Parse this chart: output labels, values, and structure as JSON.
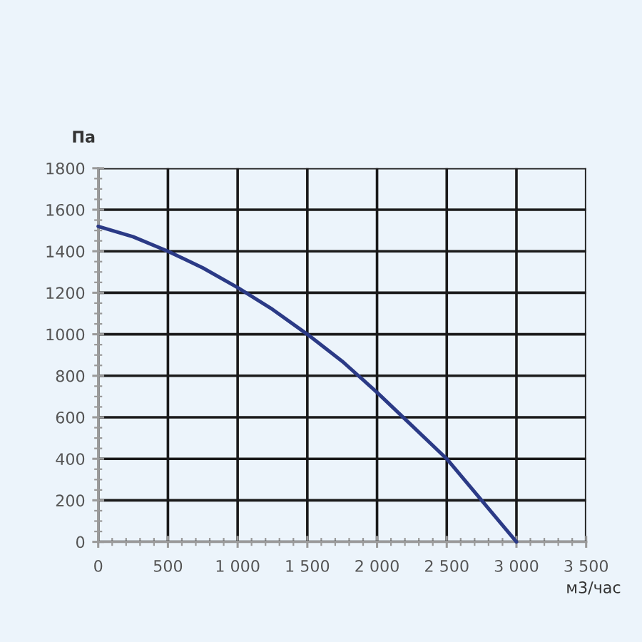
{
  "chart_data": {
    "type": "line",
    "xlabel": "м3/час",
    "ylabel": "Па",
    "x": [
      0,
      250,
      500,
      750,
      1000,
      1250,
      1500,
      1750,
      2000,
      2250,
      2500,
      2750,
      3000
    ],
    "series": [
      {
        "color": "#2b3a86",
        "values": [
          1520,
          1470,
          1400,
          1320,
          1225,
          1120,
          1000,
          870,
          720,
          560,
          400,
          200,
          0
        ]
      }
    ],
    "xlim": [
      0,
      3500
    ],
    "ylim": [
      0,
      1800
    ],
    "xticks": [
      0,
      {
        "value": 100,
        "label": null
      },
      {
        "value": 200,
        "label": null
      },
      {
        "value": 300,
        "label": null
      },
      {
        "value": 400,
        "label": null
      },
      500,
      {
        "value": 600,
        "label": null
      },
      {
        "value": 700,
        "label": null
      },
      {
        "value": 800,
        "label": null
      },
      {
        "value": 900,
        "label": null
      },
      {
        "value": 1000,
        "label": "1 000"
      },
      {
        "value": 1100,
        "label": null
      },
      {
        "value": 1200,
        "label": null
      },
      {
        "value": 1300,
        "label": null
      },
      {
        "value": 1400,
        "label": null
      },
      {
        "value": 1500,
        "label": "1 500"
      },
      {
        "value": 1600,
        "label": null
      },
      {
        "value": 1700,
        "label": null
      },
      {
        "value": 1800,
        "label": null
      },
      {
        "value": 1900,
        "label": null
      },
      {
        "value": 2000,
        "label": "2 000"
      },
      {
        "value": 2100,
        "label": null
      },
      {
        "value": 2200,
        "label": null
      },
      {
        "value": 2300,
        "label": null
      },
      {
        "value": 2400,
        "label": null
      },
      {
        "value": 2500,
        "label": "2 500"
      },
      {
        "value": 2600,
        "label": null
      },
      {
        "value": 2700,
        "label": null
      },
      {
        "value": 2800,
        "label": null
      },
      {
        "value": 2900,
        "label": null
      },
      {
        "value": 3000,
        "label": "3 000"
      },
      {
        "value": 3100,
        "label": null
      },
      {
        "value": 3200,
        "label": null
      },
      {
        "value": 3300,
        "label": null
      },
      {
        "value": 3400,
        "label": null
      },
      {
        "value": 3500,
        "label": "3 500"
      }
    ],
    "yticks": [
      0,
      {
        "value": 50,
        "label": null
      },
      {
        "value": 100,
        "label": null
      },
      {
        "value": 150,
        "label": null
      },
      200,
      {
        "value": 250,
        "label": null
      },
      {
        "value": 300,
        "label": null
      },
      {
        "value": 350,
        "label": null
      },
      400,
      {
        "value": 450,
        "label": null
      },
      {
        "value": 500,
        "label": null
      },
      {
        "value": 550,
        "label": null
      },
      600,
      {
        "value": 650,
        "label": null
      },
      {
        "value": 700,
        "label": null
      },
      {
        "value": 750,
        "label": null
      },
      800,
      {
        "value": 850,
        "label": null
      },
      {
        "value": 900,
        "label": null
      },
      {
        "value": 950,
        "label": null
      },
      1000,
      {
        "value": 1050,
        "label": null
      },
      {
        "value": 1100,
        "label": null
      },
      {
        "value": 1150,
        "label": null
      },
      1200,
      {
        "value": 1250,
        "label": null
      },
      {
        "value": 1300,
        "label": null
      },
      {
        "value": 1350,
        "label": null
      },
      1400,
      {
        "value": 1450,
        "label": null
      },
      {
        "value": 1500,
        "label": null
      },
      {
        "value": 1550,
        "label": null
      },
      1600,
      {
        "value": 1650,
        "label": null
      },
      {
        "value": 1700,
        "label": null
      },
      {
        "value": 1750,
        "label": null
      },
      1800
    ],
    "grid": true,
    "marker": "none",
    "line_style": "solid"
  }
}
